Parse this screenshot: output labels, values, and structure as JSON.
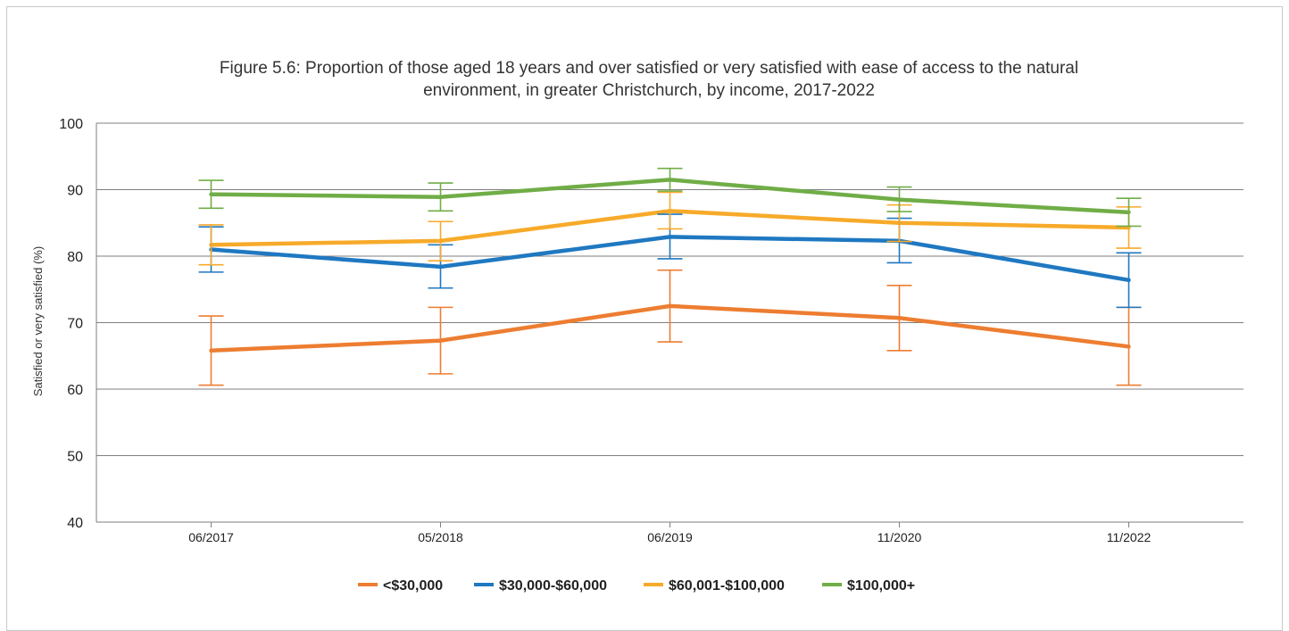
{
  "chart_data": {
    "type": "line",
    "title_lines": [
      "Figure 5.6: Proportion of those aged 18 years and over satisfied or very satisfied with ease of access to the natural",
      "environment, in greater Christchurch, by income, 2017-2022"
    ],
    "ylabel": "Satisfied or very satisfied (%)",
    "xlabel": "",
    "ylim": [
      40,
      100
    ],
    "yticks": [
      40,
      50,
      60,
      70,
      80,
      90,
      100
    ],
    "grid": true,
    "legend_position": "bottom",
    "categories": [
      "06/2017",
      "05/2018",
      "06/2019",
      "11/2020",
      "11/2022"
    ],
    "series": [
      {
        "name": "<$30,000",
        "color": "#ED7D31",
        "values": [
          65.8,
          67.3,
          72.5,
          70.7,
          66.4
        ],
        "error_low": [
          60.6,
          62.3,
          67.1,
          65.8,
          60.6
        ],
        "error_high": [
          71.0,
          72.3,
          77.9,
          75.6,
          72.3
        ]
      },
      {
        "name": "$30,000-$60,000",
        "color": "#1F78C1",
        "values": [
          81.0,
          78.4,
          82.9,
          82.3,
          76.4
        ],
        "error_low": [
          77.6,
          75.2,
          79.6,
          79.0,
          72.3
        ],
        "error_high": [
          84.4,
          81.7,
          86.3,
          85.7,
          80.5
        ]
      },
      {
        "name": "$60,001-$100,000",
        "color": "#F7AA2A",
        "values": [
          81.7,
          82.3,
          86.8,
          85.0,
          84.3
        ],
        "error_low": [
          78.7,
          79.3,
          84.1,
          82.2,
          81.2
        ],
        "error_high": [
          84.7,
          85.2,
          89.6,
          87.7,
          87.4
        ]
      },
      {
        "name": "$100,000+",
        "color": "#70AD47",
        "values": [
          89.3,
          88.9,
          91.5,
          88.5,
          86.6
        ],
        "error_low": [
          87.2,
          86.8,
          89.8,
          86.7,
          84.5
        ],
        "error_high": [
          91.4,
          91.0,
          93.2,
          90.4,
          88.7
        ]
      }
    ]
  }
}
